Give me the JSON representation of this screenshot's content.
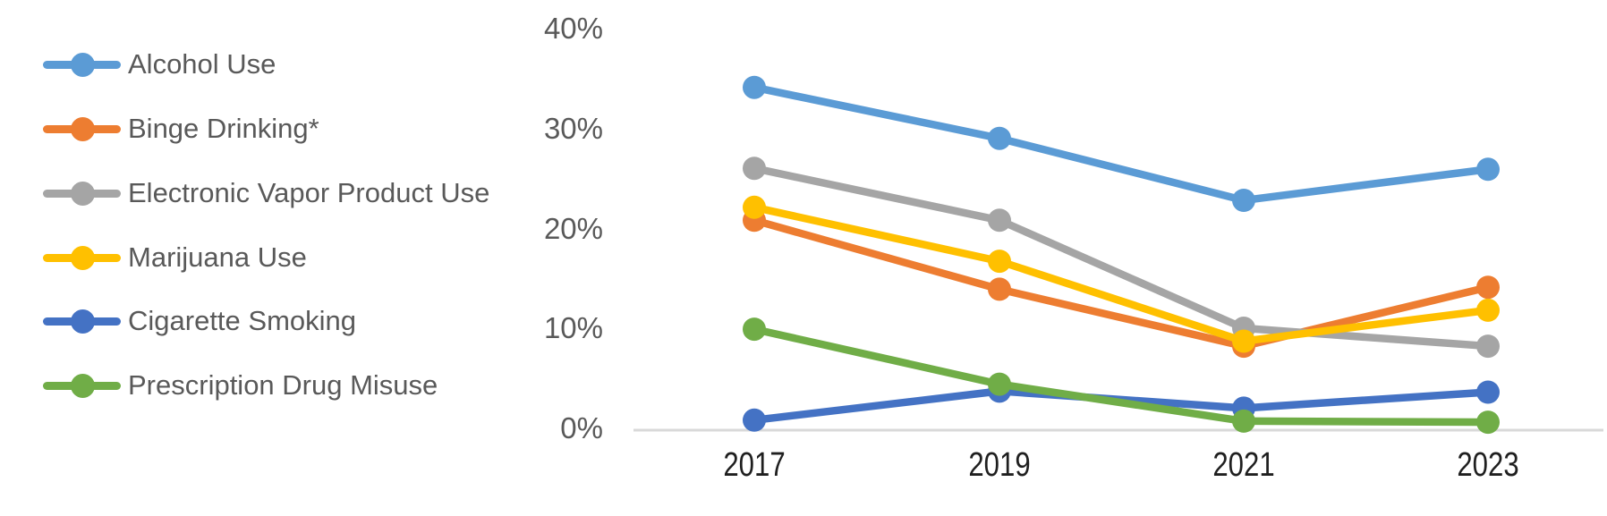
{
  "chart_data": {
    "type": "line",
    "title": "",
    "categories": [
      "2017",
      "2019",
      "2021",
      "2023"
    ],
    "series": [
      {
        "name": "Alcohol Use",
        "color": "#5B9BD5",
        "values": [
          34.3,
          29.2,
          23.0,
          26.1
        ]
      },
      {
        "name": "Binge Drinking*",
        "color": "#ED7D31",
        "values": [
          21.0,
          14.1,
          8.4,
          14.3
        ]
      },
      {
        "name": "Electronic Vapor Product Use",
        "color": "#A5A5A5",
        "values": [
          26.2,
          21.0,
          10.2,
          8.4
        ]
      },
      {
        "name": "Marijuana Use",
        "color": "#FFC000",
        "values": [
          22.3,
          16.9,
          8.9,
          12.0
        ]
      },
      {
        "name": "Cigarette Smoking",
        "color": "#4472C4",
        "values": [
          1.0,
          3.9,
          2.2,
          3.8
        ]
      },
      {
        "name": "Prescription Drug Misuse",
        "color": "#70AD47",
        "values": [
          10.1,
          4.6,
          0.9,
          0.8
        ]
      }
    ],
    "y_axis": {
      "min": 0,
      "max": 40,
      "tick_values": [
        0,
        10,
        20,
        30,
        40
      ],
      "tick_labels": [
        "0%",
        "10%",
        "20%",
        "30%",
        "40%"
      ]
    },
    "x_axis": {
      "labels": [
        "2017",
        "2019",
        "2021",
        "2023"
      ]
    },
    "legend_position": "left",
    "grid": false,
    "marker": "circle"
  },
  "colors": {
    "background": "#FFFFFF",
    "axis_line": "#D9D9D9",
    "y_tick_label": "#595959",
    "x_tick_label": "#1F1F1F",
    "legend_label": "#595959"
  }
}
